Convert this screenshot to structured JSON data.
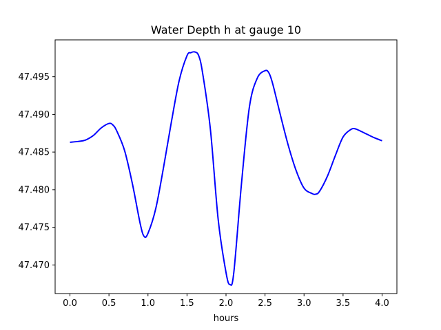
{
  "chart_data": {
    "type": "line",
    "title": "Water Depth h at gauge 10",
    "xlabel": "hours",
    "ylabel": "",
    "xlim": [
      -0.19,
      4.19
    ],
    "ylim": [
      47.4662,
      47.4999
    ],
    "xticks": [
      0.0,
      0.5,
      1.0,
      1.5,
      2.0,
      2.5,
      3.0,
      3.5,
      4.0
    ],
    "xtick_labels": [
      "0.0",
      "0.5",
      "1.0",
      "1.5",
      "2.0",
      "2.5",
      "3.0",
      "3.5",
      "4.0"
    ],
    "yticks": [
      47.47,
      47.475,
      47.48,
      47.485,
      47.49,
      47.495
    ],
    "ytick_labels": [
      "47.470",
      "47.475",
      "47.480",
      "47.485",
      "47.490",
      "47.495"
    ],
    "grid": false,
    "series": [
      {
        "color": "#0000ff",
        "x": [
          0.0,
          0.1,
          0.2,
          0.3,
          0.4,
          0.5,
          0.55,
          0.6,
          0.7,
          0.8,
          0.9,
          0.95,
          1.0,
          1.1,
          1.2,
          1.3,
          1.4,
          1.5,
          1.55,
          1.6,
          1.65,
          1.7,
          1.8,
          1.9,
          2.0,
          2.05,
          2.1,
          2.2,
          2.3,
          2.4,
          2.5,
          2.55,
          2.6,
          2.7,
          2.8,
          2.9,
          3.0,
          3.1,
          3.15,
          3.2,
          3.3,
          3.4,
          3.5,
          3.6,
          3.65,
          3.7,
          3.8,
          3.9,
          4.0
        ],
        "y": [
          47.4863,
          47.4864,
          47.4866,
          47.4872,
          47.4882,
          47.4888,
          47.4886,
          47.4878,
          47.4852,
          47.4808,
          47.4755,
          47.4738,
          47.4742,
          47.4775,
          47.483,
          47.489,
          47.4945,
          47.4978,
          47.4982,
          47.4983,
          47.4978,
          47.4955,
          47.488,
          47.476,
          47.469,
          47.4674,
          47.469,
          47.481,
          47.491,
          47.4948,
          47.4958,
          47.4955,
          47.494,
          47.4898,
          47.4858,
          47.4825,
          47.4802,
          47.4795,
          47.4794,
          47.4798,
          47.4818,
          47.4845,
          47.487,
          47.488,
          47.4881,
          47.4879,
          47.4874,
          47.4869,
          47.4865
        ]
      }
    ]
  }
}
